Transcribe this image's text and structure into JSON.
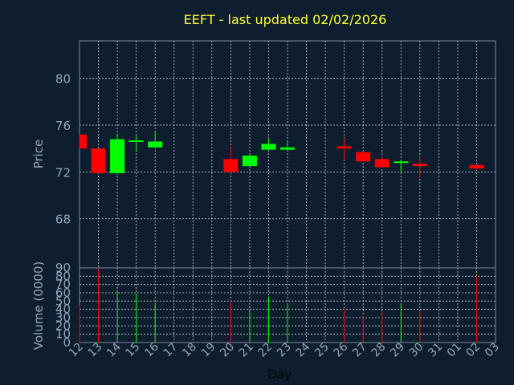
{
  "chart_data": {
    "type": "candlestick",
    "title": "EEFT - last updated 02/02/2026",
    "xlabel": "Day",
    "ylabel": "Price",
    "volume_label": "Volume (0000)",
    "x_ticks": [
      "12",
      "13",
      "14",
      "15",
      "16",
      "17",
      "18",
      "19",
      "20",
      "21",
      "22",
      "23",
      "24",
      "25",
      "26",
      "27",
      "28",
      "29",
      "30",
      "31",
      "01",
      "02",
      "03"
    ],
    "price_ticks": [
      68,
      72,
      76,
      80
    ],
    "price_range": [
      63.8,
      83.2
    ],
    "volume_ticks": [
      0,
      10,
      20,
      30,
      40,
      50,
      60,
      70,
      80,
      90
    ],
    "volume_range": [
      0,
      90
    ],
    "grid": true,
    "colors": {
      "up": "#00ff00",
      "down": "#ff0000",
      "background": "#0f1e2e",
      "title": "#ffff33",
      "axis_text": "#8fa6bd"
    },
    "candles": [
      {
        "day": "12",
        "open": 75.2,
        "high": 75.2,
        "low": 74.0,
        "close": 74.0,
        "volume": 45
      },
      {
        "day": "13",
        "open": 74.0,
        "high": 74.0,
        "low": 71.9,
        "close": 71.9,
        "volume": 89
      },
      {
        "day": "14",
        "open": 71.9,
        "high": 75.2,
        "low": 71.8,
        "close": 74.8,
        "volume": 62
      },
      {
        "day": "15",
        "open": 74.6,
        "high": 75.2,
        "low": 73.7,
        "close": 74.7,
        "volume": 59
      },
      {
        "day": "16",
        "open": 74.1,
        "high": 75.4,
        "low": 74.1,
        "close": 74.6,
        "volume": 48
      },
      {
        "day": "20",
        "open": 73.1,
        "high": 74.2,
        "low": 71.9,
        "close": 72.0,
        "volume": 51
      },
      {
        "day": "21",
        "open": 72.5,
        "high": 73.5,
        "low": 72.5,
        "close": 73.4,
        "volume": 38
      },
      {
        "day": "22",
        "open": 73.9,
        "high": 74.9,
        "low": 73.9,
        "close": 74.4,
        "volume": 55
      },
      {
        "day": "23",
        "open": 73.9,
        "high": 74.6,
        "low": 73.8,
        "close": 74.1,
        "volume": 47
      },
      {
        "day": "26",
        "open": 74.2,
        "high": 74.9,
        "low": 73.1,
        "close": 74.0,
        "volume": 41
      },
      {
        "day": "27",
        "open": 73.7,
        "high": 73.7,
        "low": 72.9,
        "close": 72.9,
        "volume": 32
      },
      {
        "day": "28",
        "open": 73.1,
        "high": 73.4,
        "low": 72.4,
        "close": 72.4,
        "volume": 38
      },
      {
        "day": "29",
        "open": 72.8,
        "high": 73.0,
        "low": 72.0,
        "close": 72.9,
        "volume": 47
      },
      {
        "day": "30",
        "open": 72.7,
        "high": 73.4,
        "low": 71.5,
        "close": 72.5,
        "volume": 38
      },
      {
        "day": "02",
        "open": 72.6,
        "high": 72.6,
        "low": 72.2,
        "close": 72.3,
        "volume": 80
      }
    ]
  }
}
